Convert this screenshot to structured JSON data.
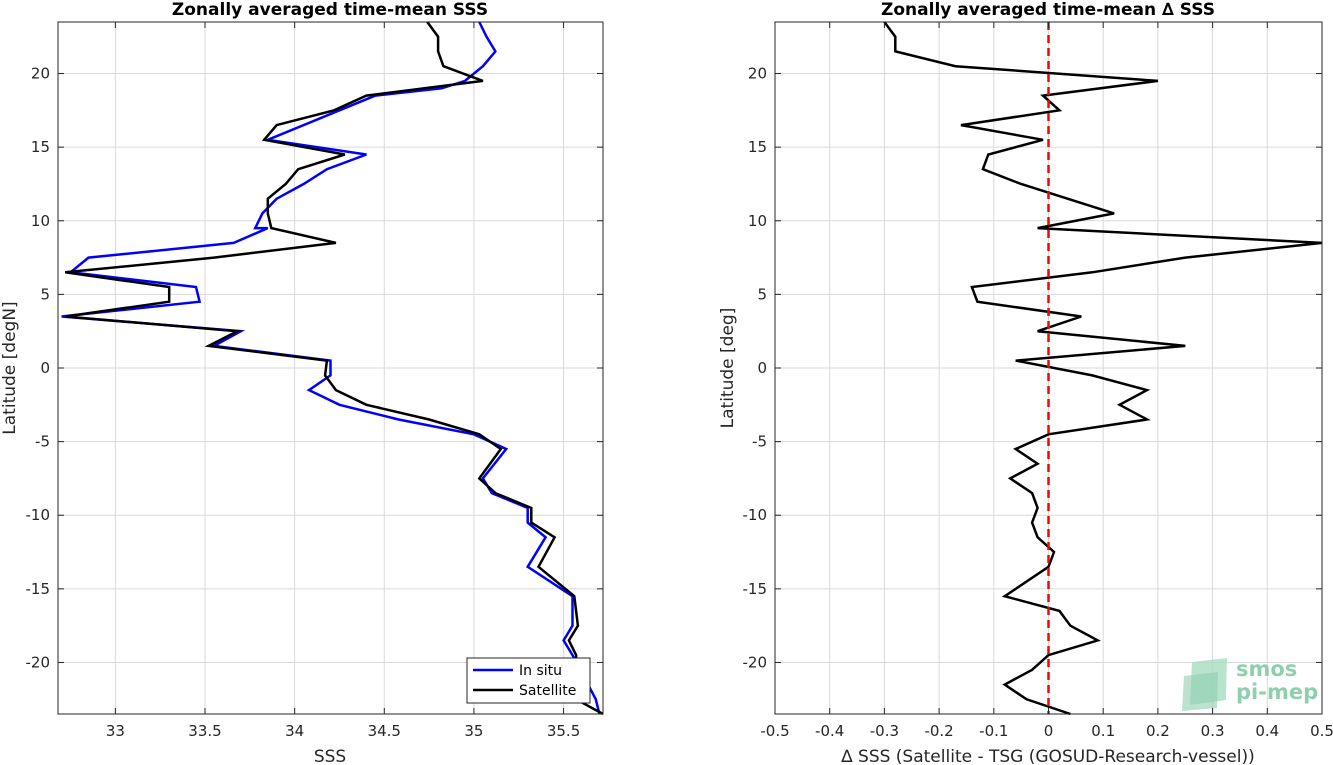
{
  "chart_data": [
    {
      "type": "line",
      "title": "Zonally averaged time-mean SSS",
      "xlabel": "SSS",
      "ylabel": "Latitude [degN]",
      "xlim": [
        32.68,
        35.72
      ],
      "ylim": [
        -23.5,
        23.5
      ],
      "xticks": [
        "33",
        "33.5",
        "34",
        "34.5",
        "35",
        "35.5"
      ],
      "yticks": [
        "20",
        "15",
        "10",
        "5",
        "0",
        "-5",
        "-10",
        "-15",
        "-20"
      ],
      "grid": true,
      "legend": {
        "location": "bottom-right",
        "entries": [
          "In situ",
          "Satellite"
        ]
      },
      "series": [
        {
          "name": "In situ",
          "color": "#0000ff",
          "points": [
            [
              35.03,
              23.5
            ],
            [
              35.07,
              22.5
            ],
            [
              35.12,
              21.5
            ],
            [
              35.05,
              20.5
            ],
            [
              34.95,
              19.5
            ],
            [
              34.82,
              19.0
            ],
            [
              34.45,
              18.5
            ],
            [
              34.25,
              17.5
            ],
            [
              34.05,
              16.5
            ],
            [
              33.85,
              15.5
            ],
            [
              34.4,
              14.5
            ],
            [
              34.18,
              13.5
            ],
            [
              34.05,
              12.5
            ],
            [
              33.9,
              11.5
            ],
            [
              33.82,
              10.5
            ],
            [
              33.78,
              9.5
            ],
            [
              33.85,
              9.5
            ],
            [
              33.66,
              8.5
            ],
            [
              32.85,
              7.5
            ],
            [
              32.75,
              6.5
            ],
            [
              33.45,
              5.5
            ],
            [
              33.47,
              4.5
            ],
            [
              32.7,
              3.5
            ],
            [
              33.7,
              2.5
            ],
            [
              33.55,
              1.5
            ],
            [
              34.2,
              0.5
            ],
            [
              34.2,
              -0.5
            ],
            [
              34.08,
              -1.5
            ],
            [
              34.25,
              -2.5
            ],
            [
              34.58,
              -3.5
            ],
            [
              35.0,
              -4.5
            ],
            [
              35.18,
              -5.5
            ],
            [
              35.05,
              -7.5
            ],
            [
              35.1,
              -8.5
            ],
            [
              35.3,
              -9.5
            ],
            [
              35.3,
              -10.5
            ],
            [
              35.4,
              -11.5
            ],
            [
              35.3,
              -13.5
            ],
            [
              35.55,
              -15.5
            ],
            [
              35.55,
              -17.5
            ],
            [
              35.5,
              -18.5
            ],
            [
              35.55,
              -19.5
            ],
            [
              35.68,
              -22.5
            ],
            [
              35.7,
              -23.5
            ]
          ]
        },
        {
          "name": "Satellite",
          "color": "#000000",
          "points": [
            [
              34.74,
              23.5
            ],
            [
              34.8,
              22.5
            ],
            [
              34.8,
              21.5
            ],
            [
              34.83,
              20.5
            ],
            [
              35.05,
              19.5
            ],
            [
              34.4,
              18.5
            ],
            [
              34.22,
              17.5
            ],
            [
              33.9,
              16.5
            ],
            [
              33.83,
              15.5
            ],
            [
              34.28,
              14.5
            ],
            [
              34.02,
              13.5
            ],
            [
              33.95,
              12.5
            ],
            [
              33.85,
              11.5
            ],
            [
              33.85,
              10.5
            ],
            [
              33.87,
              9.5
            ],
            [
              34.23,
              8.5
            ],
            [
              33.55,
              7.5
            ],
            [
              32.72,
              6.5
            ],
            [
              33.3,
              5.5
            ],
            [
              33.3,
              4.5
            ],
            [
              32.72,
              3.5
            ],
            [
              33.68,
              2.5
            ],
            [
              33.52,
              1.5
            ],
            [
              34.18,
              0.5
            ],
            [
              34.17,
              -0.5
            ],
            [
              34.23,
              -1.5
            ],
            [
              34.4,
              -2.5
            ],
            [
              34.75,
              -3.5
            ],
            [
              35.03,
              -4.5
            ],
            [
              35.15,
              -5.5
            ],
            [
              35.03,
              -7.5
            ],
            [
              35.12,
              -8.5
            ],
            [
              35.32,
              -9.5
            ],
            [
              35.32,
              -10.5
            ],
            [
              35.45,
              -11.5
            ],
            [
              35.36,
              -13.5
            ],
            [
              35.56,
              -15.5
            ],
            [
              35.58,
              -17.5
            ],
            [
              35.53,
              -18.5
            ],
            [
              35.57,
              -19.5
            ],
            [
              35.57,
              -22.5
            ],
            [
              35.72,
              -23.5
            ]
          ]
        }
      ]
    },
    {
      "type": "line",
      "title": "Zonally averaged time-mean ∆ SSS",
      "xlabel": "∆ SSS (Satellite - TSG (GOSUD-Research-vessel))",
      "ylabel": "Latitude [deg]",
      "xlim": [
        -0.5,
        0.5
      ],
      "ylim": [
        -23.5,
        23.5
      ],
      "xticks": [
        "-0.5",
        "-0.4",
        "-0.3",
        "-0.2",
        "-0.1",
        "0",
        "0.1",
        "0.2",
        "0.3",
        "0.4",
        "0.5"
      ],
      "yticks": [
        "20",
        "15",
        "10",
        "5",
        "0",
        "-5",
        "-10",
        "-15",
        "-20"
      ],
      "grid": true,
      "reference_line": {
        "x": 0,
        "color": "#ff0000",
        "style": "dashed"
      },
      "series": [
        {
          "color": "#000000",
          "points": [
            [
              -0.3,
              23.5
            ],
            [
              -0.28,
              22.5
            ],
            [
              -0.28,
              21.5
            ],
            [
              -0.17,
              20.5
            ],
            [
              0.2,
              19.5
            ],
            [
              -0.01,
              18.5
            ],
            [
              0.02,
              17.5
            ],
            [
              -0.16,
              16.5
            ],
            [
              -0.01,
              15.5
            ],
            [
              -0.11,
              14.5
            ],
            [
              -0.12,
              13.5
            ],
            [
              -0.05,
              12.5
            ],
            [
              0.12,
              10.5
            ],
            [
              -0.02,
              9.5
            ],
            [
              0.5,
              8.5
            ],
            [
              0.25,
              7.5
            ],
            [
              0.08,
              6.5
            ],
            [
              -0.14,
              5.5
            ],
            [
              -0.13,
              4.5
            ],
            [
              0.06,
              3.5
            ],
            [
              -0.02,
              2.5
            ],
            [
              0.25,
              1.5
            ],
            [
              -0.06,
              0.5
            ],
            [
              0.08,
              -0.5
            ],
            [
              0.18,
              -1.5
            ],
            [
              0.13,
              -2.5
            ],
            [
              0.18,
              -3.5
            ],
            [
              0.0,
              -4.5
            ],
            [
              -0.06,
              -5.5
            ],
            [
              -0.02,
              -6.5
            ],
            [
              -0.07,
              -7.5
            ],
            [
              -0.03,
              -8.5
            ],
            [
              -0.02,
              -9.5
            ],
            [
              -0.03,
              -10.5
            ],
            [
              -0.02,
              -11.5
            ],
            [
              0.01,
              -12.5
            ],
            [
              0.0,
              -13.5
            ],
            [
              -0.08,
              -15.5
            ],
            [
              0.02,
              -16.5
            ],
            [
              0.04,
              -17.5
            ],
            [
              0.09,
              -18.5
            ],
            [
              0.0,
              -19.5
            ],
            [
              -0.03,
              -20.5
            ],
            [
              -0.08,
              -21.5
            ],
            [
              -0.04,
              -22.5
            ],
            [
              0.04,
              -23.5
            ]
          ]
        }
      ]
    }
  ],
  "logo": {
    "line1": "smos",
    "line2": "pi-mep",
    "color": "#8fcfae"
  }
}
